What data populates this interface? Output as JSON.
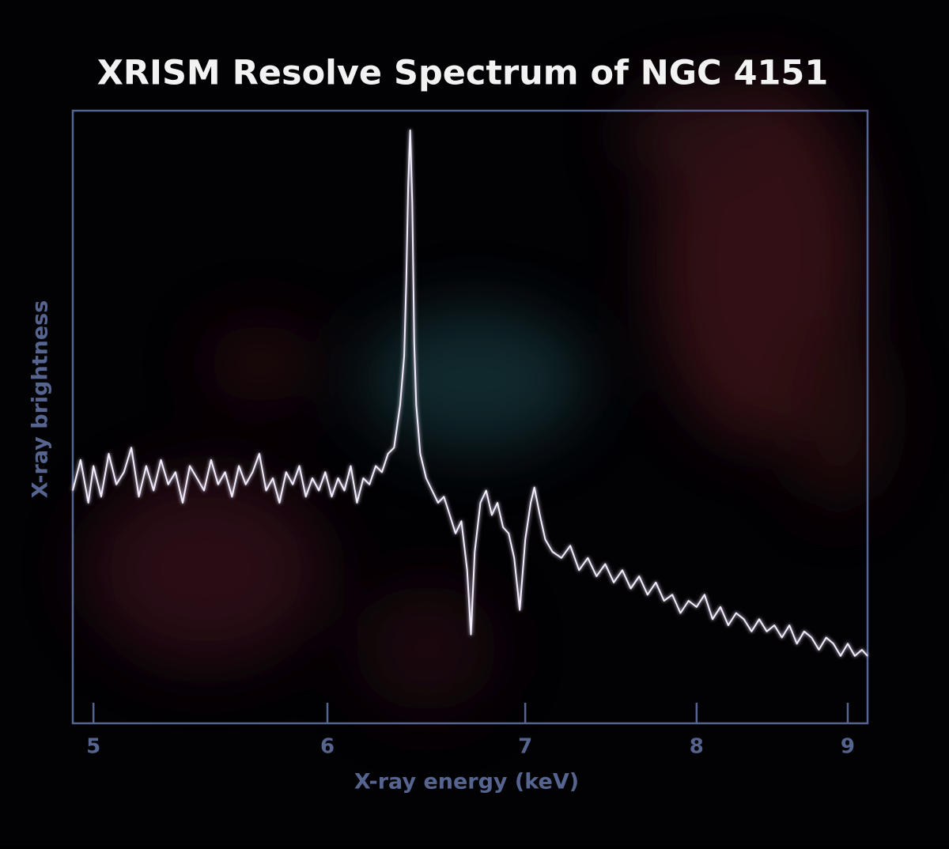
{
  "chart_data": {
    "type": "line",
    "title": "XRISM Resolve Spectrum of NGC 4151",
    "x_label": "X-ray energy (keV)",
    "y_label": "X-ray brightness",
    "xscale": "log",
    "xlim": [
      4.92,
      9.14
    ],
    "xticks": [
      5,
      6,
      7,
      8,
      9
    ],
    "ylim": [
      0,
      100
    ],
    "color": "#f3ecff",
    "x": [
      4.92,
      4.95,
      4.98,
      5.0,
      5.03,
      5.06,
      5.09,
      5.12,
      5.15,
      5.18,
      5.21,
      5.24,
      5.27,
      5.3,
      5.33,
      5.36,
      5.39,
      5.42,
      5.45,
      5.48,
      5.51,
      5.54,
      5.57,
      5.6,
      5.63,
      5.66,
      5.69,
      5.72,
      5.75,
      5.78,
      5.81,
      5.84,
      5.87,
      5.9,
      5.93,
      5.96,
      5.99,
      6.02,
      6.05,
      6.08,
      6.11,
      6.14,
      6.17,
      6.2,
      6.23,
      6.26,
      6.29,
      6.32,
      6.35,
      6.37,
      6.38,
      6.39,
      6.4,
      6.41,
      6.42,
      6.43,
      6.45,
      6.48,
      6.51,
      6.54,
      6.57,
      6.6,
      6.63,
      6.66,
      6.69,
      6.71,
      6.73,
      6.76,
      6.79,
      6.82,
      6.85,
      6.88,
      6.91,
      6.94,
      6.97,
      7.0,
      7.03,
      7.05,
      7.08,
      7.11,
      7.15,
      7.2,
      7.25,
      7.3,
      7.35,
      7.4,
      7.45,
      7.5,
      7.55,
      7.6,
      7.65,
      7.7,
      7.75,
      7.8,
      7.85,
      7.9,
      7.95,
      8.0,
      8.05,
      8.1,
      8.15,
      8.2,
      8.25,
      8.3,
      8.35,
      8.4,
      8.45,
      8.5,
      8.55,
      8.6,
      8.65,
      8.7,
      8.75,
      8.8,
      8.85,
      8.9,
      8.95,
      9.0,
      9.05,
      9.1,
      9.14
    ],
    "values": [
      38,
      43,
      36,
      42,
      37,
      44,
      39,
      41,
      45,
      37,
      42,
      38,
      43,
      39,
      41,
      36,
      42,
      40,
      38,
      43,
      39,
      41,
      37,
      42,
      39,
      41,
      44,
      38,
      40,
      36,
      41,
      39,
      42,
      37,
      40,
      38,
      41,
      37,
      40,
      38,
      42,
      36,
      40,
      39,
      42,
      41,
      44,
      45,
      52,
      60,
      72,
      88,
      96.8,
      85,
      62,
      52,
      44,
      40,
      38,
      36,
      37,
      34,
      31,
      33,
      25,
      14.5,
      28,
      36,
      38,
      34,
      36,
      32,
      31,
      27,
      18.5,
      30,
      36,
      38.5,
      34,
      30,
      28,
      27,
      29,
      25,
      27,
      24,
      26,
      23,
      25,
      22,
      24,
      21,
      23,
      20,
      21,
      18,
      20,
      19,
      21,
      17,
      19,
      16,
      18,
      17,
      15,
      17,
      15,
      16,
      14,
      16,
      13,
      15,
      14,
      12,
      14,
      13,
      11,
      13,
      11,
      12,
      11
    ]
  }
}
